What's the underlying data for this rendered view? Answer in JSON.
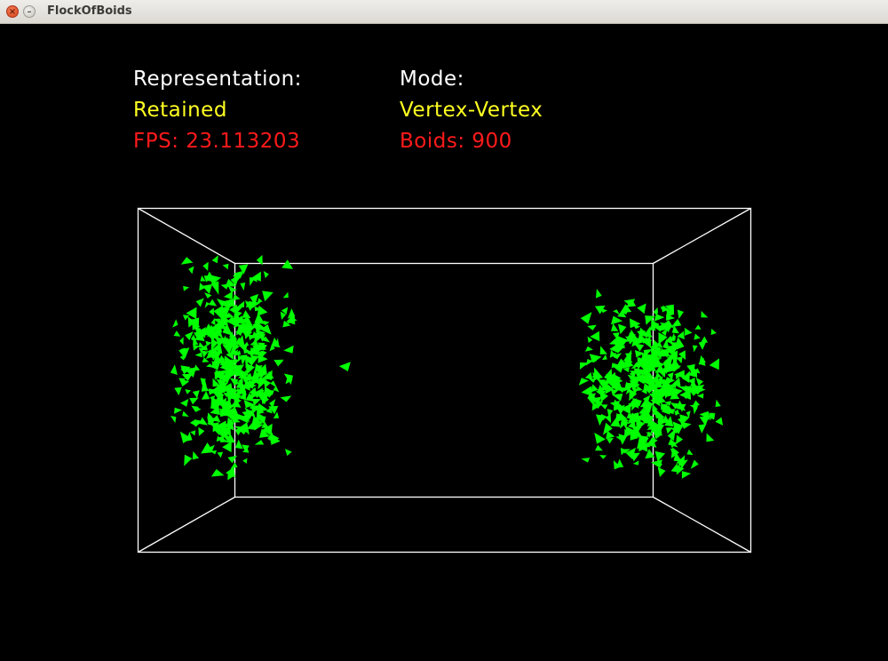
{
  "window": {
    "title": "FlockOfBoids",
    "close_glyph": "×",
    "minimize_glyph": "–"
  },
  "hud": {
    "representation_label": "Representation:",
    "representation_value": "Retained",
    "fps_text": "FPS: 23.113203",
    "mode_label": "Mode:",
    "mode_value": "Vertex-Vertex",
    "boids_text": "Boids: 900"
  },
  "colors": {
    "background": "#000000",
    "box_lines": "#ffffff",
    "boid": "#00ff00",
    "label": "#ffffff",
    "value": "#ffff22",
    "stat": "#ff1a1a"
  }
}
